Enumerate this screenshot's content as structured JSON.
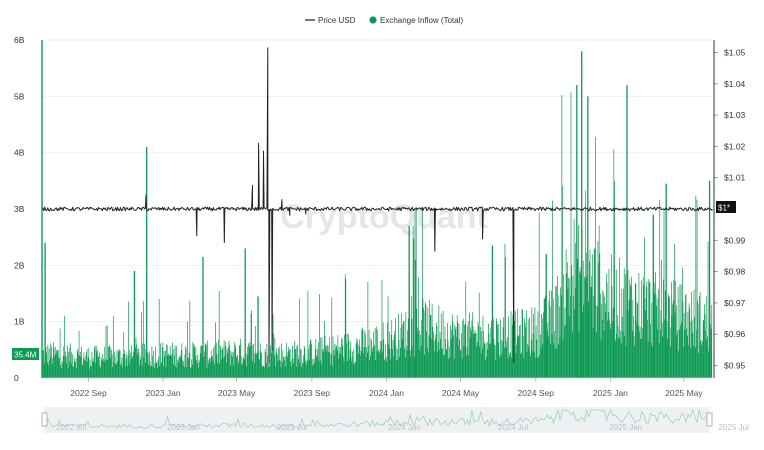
{
  "legend": {
    "price": "Price USD",
    "inflow": "Exchange Inflow (Total)"
  },
  "watermark": "CryptoQuant",
  "colors": {
    "price": "#222222",
    "inflow": "#0d9a54",
    "badge_left": "#0d9a54",
    "badge_right": "#111111"
  },
  "badges": {
    "left": "35.4M",
    "right": "$1*"
  },
  "chart_data": {
    "type": "bar",
    "x_axis": {
      "ticks": [
        "2022 Sep",
        "2023 Jan",
        "2023 May",
        "2023 Sep",
        "2024 Jan",
        "2024 May",
        "2024 Sep",
        "2025 Jan",
        "2025 May"
      ],
      "range": [
        "2022-07-01",
        "2025-06-30"
      ]
    },
    "y_left": {
      "range": [
        0,
        6000000000
      ],
      "tick_values": [
        0,
        1000000000,
        2000000000,
        3000000000,
        4000000000,
        5000000000,
        6000000000
      ],
      "tick_labels": [
        "0",
        "1B",
        "2B",
        "3B",
        "4B",
        "5B",
        "6B"
      ]
    },
    "y_right": {
      "range": [
        0.946,
        1.054
      ],
      "tick_values": [
        0.95,
        0.96,
        0.97,
        0.98,
        0.99,
        1.01,
        1.02,
        1.03,
        1.04,
        1.05
      ],
      "tick_labels": [
        "$0.95",
        "$0.96",
        "$0.97",
        "$0.98",
        "$0.99",
        "$1.01",
        "$1.02",
        "$1.03",
        "$1.04",
        "$1.05"
      ]
    },
    "series": [
      {
        "name": "Exchange Inflow (Total)",
        "type": "bar",
        "axis": "left",
        "baseline": [
          [
            "2022-07",
            500000000
          ],
          [
            "2022-09",
            450000000
          ],
          [
            "2022-11",
            450000000
          ],
          [
            "2023-01",
            500000000
          ],
          [
            "2023-03",
            500000000
          ],
          [
            "2023-05",
            550000000
          ],
          [
            "2023-07",
            500000000
          ],
          [
            "2023-09",
            550000000
          ],
          [
            "2023-11",
            650000000
          ],
          [
            "2024-01",
            800000000
          ],
          [
            "2024-03",
            1100000000
          ],
          [
            "2024-05",
            900000000
          ],
          [
            "2024-07",
            900000000
          ],
          [
            "2024-09",
            1000000000
          ],
          [
            "2024-10",
            1300000000
          ],
          [
            "2024-11",
            2300000000
          ],
          [
            "2024-12",
            2000000000
          ],
          [
            "2025-01",
            1700000000
          ],
          [
            "2025-03",
            1500000000
          ],
          [
            "2025-05",
            1300000000
          ],
          [
            "2025-06",
            1200000000
          ]
        ],
        "spikes": [
          [
            "2022-07-05",
            2400000000
          ],
          [
            "2022-11-28",
            1900000000
          ],
          [
            "2022-12-18",
            4100000000
          ],
          [
            "2023-03-20",
            2150000000
          ],
          [
            "2023-05-28",
            2300000000
          ],
          [
            "2023-06-18",
            1450000000
          ],
          [
            "2024-02-20",
            2700000000
          ],
          [
            "2024-03-01",
            2100000000
          ],
          [
            "2024-07-05",
            2350000000
          ],
          [
            "2024-10-01",
            2200000000
          ],
          [
            "2024-11-20",
            5200000000
          ],
          [
            "2024-11-28",
            5800000000
          ],
          [
            "2024-12-08",
            5000000000
          ],
          [
            "2025-01-20",
            3500000000
          ],
          [
            "2025-02-10",
            5200000000
          ],
          [
            "2025-03-25",
            2900000000
          ],
          [
            "2025-04-15",
            3450000000
          ],
          [
            "2025-06-25",
            3500000000
          ]
        ]
      },
      {
        "name": "Price USD",
        "type": "line",
        "axis": "right",
        "baseline": 1.0,
        "points": [
          [
            "2022-07-01",
            0.9995
          ],
          [
            "2022-12-15",
            1.0003
          ],
          [
            "2022-12-18",
            1.0045
          ],
          [
            "2022-12-22",
            1.0
          ],
          [
            "2023-03-11",
            0.9915
          ],
          [
            "2023-03-15",
            1.0
          ],
          [
            "2023-04-25",
            0.9893
          ],
          [
            "2023-05-10",
            1.0
          ],
          [
            "2023-06-10",
            1.0075
          ],
          [
            "2023-06-13",
            1.0
          ],
          [
            "2023-06-20",
            1.021
          ],
          [
            "2023-06-23",
            1.0
          ],
          [
            "2023-06-28",
            1.0185
          ],
          [
            "2023-07-01",
            1.0
          ],
          [
            "2023-07-05",
            1.0515
          ],
          [
            "2023-07-07",
            0.951
          ],
          [
            "2023-07-10",
            1.0
          ],
          [
            "2023-07-12",
            0.955
          ],
          [
            "2023-07-14",
            1.0
          ],
          [
            "2023-07-28",
            1.003
          ],
          [
            "2023-08-10",
            0.998
          ],
          [
            "2023-09-05",
            0.9985
          ],
          [
            "2024-04-03",
            0.9865
          ],
          [
            "2024-04-06",
            1.0
          ],
          [
            "2024-06-20",
            0.9905
          ],
          [
            "2024-06-23",
            1.0
          ],
          [
            "2024-08-10",
            0.951
          ],
          [
            "2024-08-13",
            1.0
          ],
          [
            "2024-10-01",
            0.9995
          ],
          [
            "2025-06-30",
            1.0
          ]
        ]
      }
    ],
    "navigator": {
      "ticks": [
        "2022 Jul",
        "2023 Jan",
        "2023 Jul",
        "2024 Jan",
        "2024 Jul",
        "2025 Jan",
        "2025 Jul"
      ]
    },
    "grid": true,
    "legend_position": "top-center"
  }
}
